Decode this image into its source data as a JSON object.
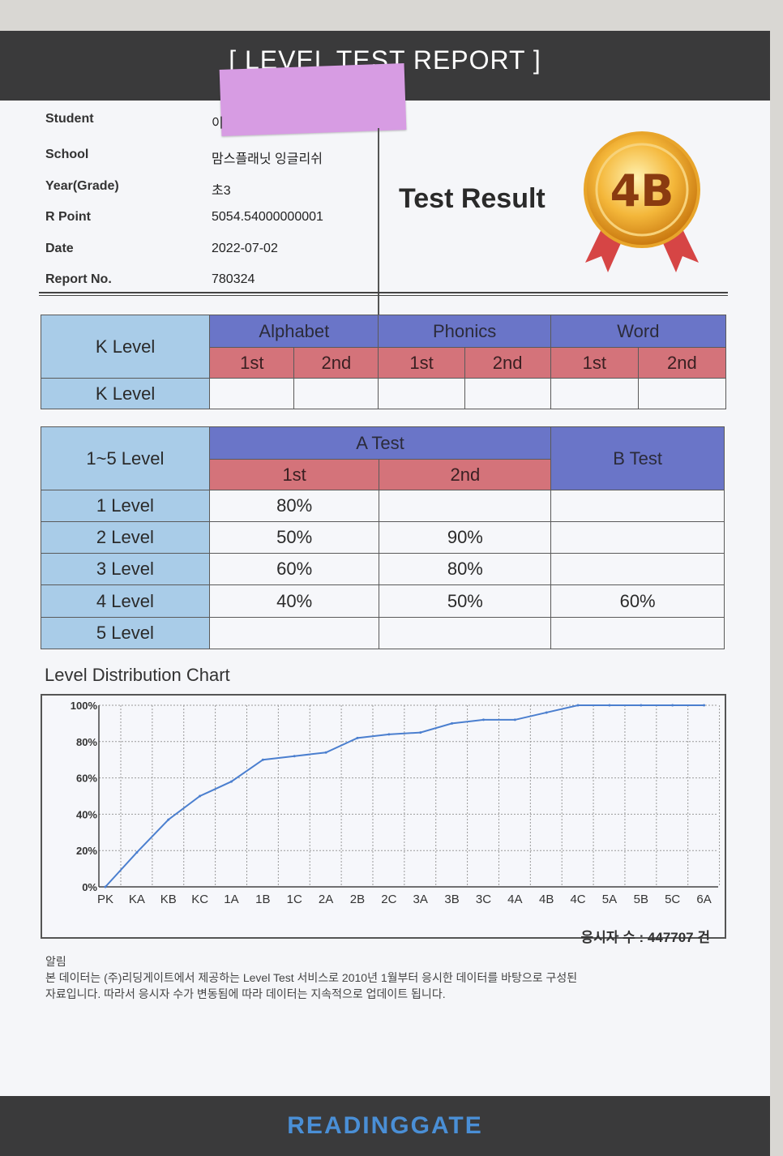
{
  "report": {
    "title": "[ LEVEL TEST REPORT ]"
  },
  "student_info": [
    {
      "label": "Student",
      "value": "이"
    },
    {
      "label": "School",
      "value": "맘스플래닛 잉글리쉬"
    },
    {
      "label": "Year(Grade)",
      "value": "초3"
    },
    {
      "label": "R Point",
      "value": "5054.54000000001"
    },
    {
      "label": "Date",
      "value": "2022-07-02"
    },
    {
      "label": "Report No.",
      "value": "780324"
    }
  ],
  "result": {
    "heading": "Test Result",
    "level": "4B"
  },
  "k_level_table": {
    "corner": "K Level",
    "groups": [
      "Alphabet",
      "Phonics",
      "Word"
    ],
    "subs": [
      "1st",
      "2nd",
      "1st",
      "2nd",
      "1st",
      "2nd"
    ],
    "row_label": "K Level",
    "row_values": [
      "",
      "",
      "",
      "",
      "",
      ""
    ]
  },
  "level_table": {
    "corner": "1~5 Level",
    "a_test": "A Test",
    "b_test": "B Test",
    "subs": [
      "1st",
      "2nd"
    ],
    "rows": [
      {
        "label": "1 Level",
        "a1": "80%",
        "a2": "",
        "b": ""
      },
      {
        "label": "2 Level",
        "a1": "50%",
        "a2": "90%",
        "b": ""
      },
      {
        "label": "3 Level",
        "a1": "60%",
        "a2": "80%",
        "b": ""
      },
      {
        "label": "4 Level",
        "a1": "40%",
        "a2": "50%",
        "b": "60%"
      },
      {
        "label": "5 Level",
        "a1": "",
        "a2": "",
        "b": ""
      }
    ]
  },
  "chart_title": "Level Distribution Chart",
  "chart_data": {
    "type": "line",
    "title": "Level Distribution Chart",
    "categories": [
      "PK",
      "KA",
      "KB",
      "KC",
      "1A",
      "1B",
      "1C",
      "2A",
      "2B",
      "2C",
      "3A",
      "3B",
      "3C",
      "4A",
      "4B",
      "4C",
      "5A",
      "5B",
      "5C",
      "6A"
    ],
    "y_ticks": [
      "0%",
      "20%",
      "40%",
      "60%",
      "80%",
      "100%"
    ],
    "ylim": [
      0,
      100
    ],
    "grid": true,
    "series": [
      {
        "values": [
          0,
          19,
          37,
          50,
          58,
          70,
          72,
          74,
          82,
          84,
          85,
          90,
          92,
          92,
          96,
          100,
          100,
          100,
          100,
          100
        ]
      }
    ],
    "line_color": "#4b7fcf"
  },
  "participants": "응시자 수 : 447707 건",
  "notice": {
    "heading": "알림",
    "line1": "본 데이터는 (주)리딩게이트에서 제공하는 Level Test 서비스로 2010년 1월부터 응시한 데이터를 바탕으로 구성된",
    "line2": "자료입니다. 따라서 응시자 수가 변동됨에 따라 데이터는 지속적으로 업데이트 됩니다."
  },
  "footer": {
    "logo": "READINGGATE"
  }
}
